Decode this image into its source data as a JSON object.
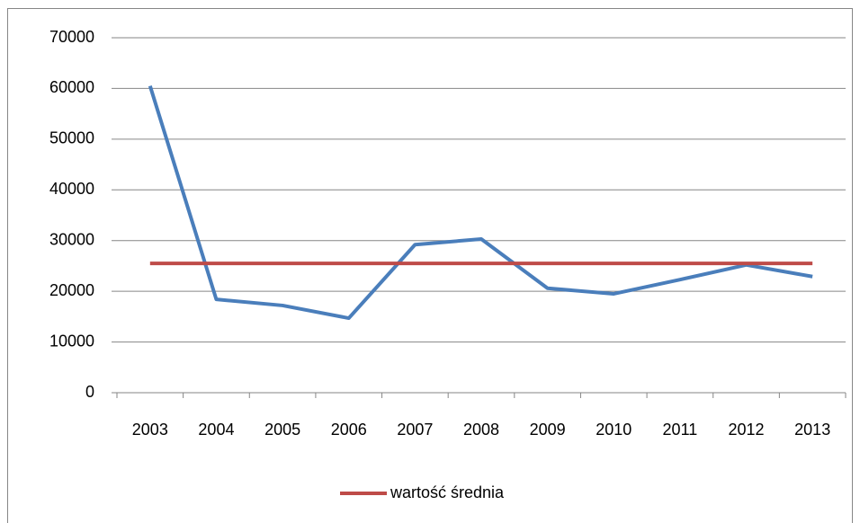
{
  "chart_data": {
    "type": "line",
    "categories": [
      "2003",
      "2004",
      "2005",
      "2006",
      "2007",
      "2008",
      "2009",
      "2010",
      "2011",
      "2012",
      "2013"
    ],
    "series": [
      {
        "color": "#4a7ebb",
        "values": [
          60500,
          18400,
          17200,
          14700,
          29200,
          30300,
          20600,
          19500,
          22300,
          25200,
          22900
        ]
      },
      {
        "name": "wartość średnia",
        "color": "#be4b48",
        "values": [
          25500,
          25500,
          25500,
          25500,
          25500,
          25500,
          25500,
          25500,
          25500,
          25500,
          25500
        ]
      }
    ],
    "ylim": [
      0,
      70000
    ],
    "yticks": [
      0,
      10000,
      20000,
      30000,
      40000,
      50000,
      60000,
      70000
    ],
    "grid": true,
    "legend": "bottom"
  }
}
